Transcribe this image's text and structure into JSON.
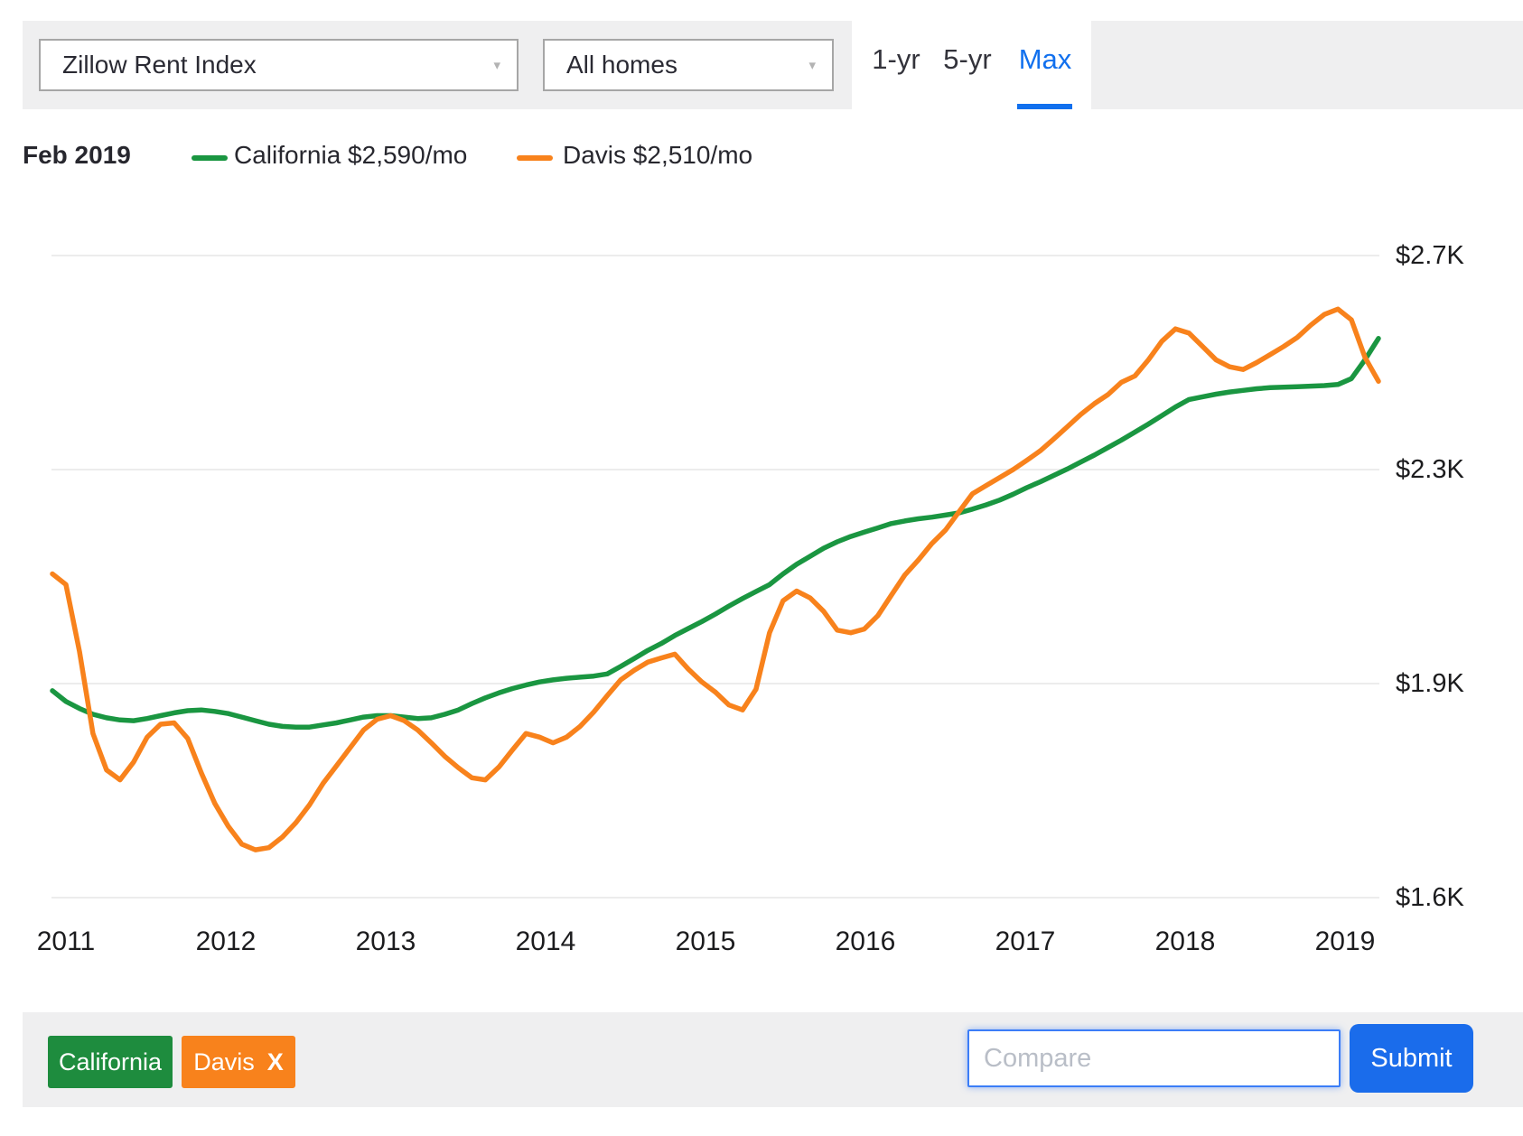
{
  "header": {
    "metric_dropdown": {
      "value": "Zillow Rent Index",
      "caret": "▾"
    },
    "homes_dropdown": {
      "value": "All homes",
      "caret": "▾"
    },
    "range_tabs": [
      {
        "label": "1-yr",
        "active": false
      },
      {
        "label": "5-yr",
        "active": false
      },
      {
        "label": "Max",
        "active": true
      }
    ],
    "active_tab_color": "#1170ee"
  },
  "legend": {
    "date_label": "Feb 2019",
    "items": [
      {
        "name": "California",
        "label": "California $2,590/mo",
        "color": "#1a9641"
      },
      {
        "name": "Davis",
        "label": "Davis $2,510/mo",
        "color": "#f8821c"
      }
    ]
  },
  "chart_data": {
    "type": "line",
    "x_start": "Dec 2010",
    "x_end": "Feb 2019",
    "interval": "monthly",
    "x_tick_labels": [
      "2011",
      "2012",
      "2013",
      "2014",
      "2015",
      "2016",
      "2017",
      "2018",
      "2019"
    ],
    "y_tick_labels": [
      "$2.7K",
      "$2.3K",
      "$1.9K",
      "$1.6K"
    ],
    "y_tick_values": [
      2700,
      2300,
      1900,
      1600
    ],
    "y_unit": "USD per month",
    "grid": true,
    "legend_position": "top-left",
    "series": [
      {
        "name": "California",
        "color": "#1a9641",
        "end_label": "California $2,590/mo",
        "values": [
          1935,
          1920,
          1910,
          1902,
          1897,
          1894,
          1893,
          1896,
          1900,
          1904,
          1907,
          1908,
          1906,
          1903,
          1898,
          1893,
          1888,
          1885,
          1884,
          1884,
          1887,
          1890,
          1894,
          1898,
          1900,
          1900,
          1898,
          1896,
          1897,
          1902,
          1908,
          1917,
          1925,
          1932,
          1938,
          1943,
          1948,
          1952,
          1955,
          1957,
          1959,
          1963,
          1977,
          1992,
          2007,
          2020,
          2035,
          2048,
          2061,
          2075,
          2090,
          2104,
          2117,
          2130,
          2150,
          2168,
          2183,
          2198,
          2210,
          2220,
          2228,
          2236,
          2244,
          2249,
          2253,
          2256,
          2260,
          2264,
          2271,
          2279,
          2288,
          2299,
          2311,
          2322,
          2334,
          2346,
          2359,
          2372,
          2386,
          2400,
          2415,
          2430,
          2446,
          2462,
          2476,
          2481,
          2486,
          2490,
          2493,
          2496,
          2498,
          2499,
          2500,
          2501,
          2502,
          2504,
          2515,
          2550,
          2590
        ]
      },
      {
        "name": "Davis",
        "color": "#f8821c",
        "end_label": "Davis $2,510/mo",
        "values": [
          2150,
          2130,
          2005,
          1875,
          1824,
          1810,
          1835,
          1870,
          1888,
          1890,
          1868,
          1820,
          1777,
          1745,
          1720,
          1712,
          1715,
          1730,
          1750,
          1775,
          1805,
          1830,
          1855,
          1880,
          1895,
          1900,
          1893,
          1880,
          1862,
          1843,
          1827,
          1813,
          1810,
          1828,
          1852,
          1875,
          1870,
          1862,
          1870,
          1885,
          1905,
          1928,
          1952,
          1970,
          1985,
          1993,
          2000,
          1972,
          1948,
          1933,
          1915,
          1908,
          1937,
          2040,
          2100,
          2118,
          2105,
          2080,
          2045,
          2040,
          2047,
          2072,
          2110,
          2148,
          2176,
          2207,
          2232,
          2266,
          2300,
          2315,
          2330,
          2345,
          2362,
          2380,
          2402,
          2425,
          2448,
          2468,
          2485,
          2508,
          2520,
          2550,
          2585,
          2608,
          2600,
          2575,
          2550,
          2537,
          2532,
          2545,
          2560,
          2575,
          2592,
          2615,
          2635,
          2645,
          2625,
          2555,
          2510
        ]
      }
    ]
  },
  "footer": {
    "chips": [
      {
        "label": "California",
        "color": "#1e8c3e"
      },
      {
        "label": "Davis",
        "close_label": "X",
        "color": "#f8821c"
      }
    ],
    "compare_input": {
      "placeholder": "Compare"
    },
    "submit_label": "Submit",
    "submit_color": "#1a6ceb"
  }
}
